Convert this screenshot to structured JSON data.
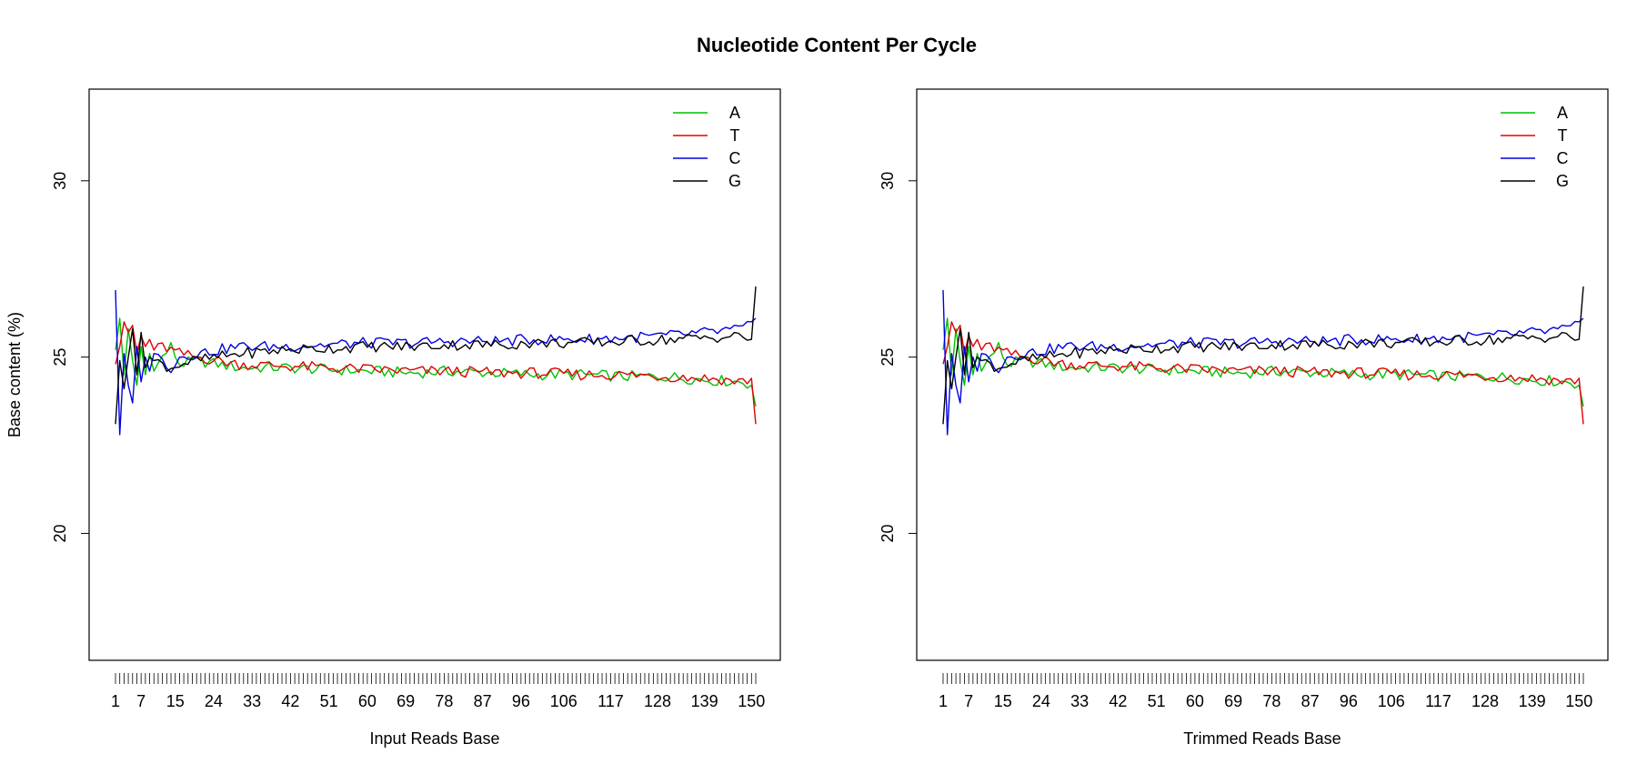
{
  "title": "Nucleotide Content Per Cycle",
  "colors": {
    "A": "#00c000",
    "T": "#e00000",
    "C": "#0000e0",
    "G": "#000000"
  },
  "chart_data": [
    {
      "type": "line",
      "xlabel": "Input Reads Base",
      "ylabel": "Base content (%)",
      "xlim": [
        1,
        151
      ],
      "ylim": [
        16.4,
        32.6
      ],
      "yticks": [
        20,
        25,
        30
      ],
      "xtick_labels": [
        "1",
        "7",
        "15",
        "24",
        "33",
        "42",
        "51",
        "60",
        "69",
        "78",
        "87",
        "96",
        "106",
        "117",
        "128",
        "139",
        "150"
      ],
      "legend": [
        "A",
        "T",
        "C",
        "G"
      ],
      "legend_position": "top-right",
      "series": [
        {
          "name": "A",
          "anchors": [
            [
              1,
              25.2
            ],
            [
              2,
              26.1
            ],
            [
              3,
              24.5
            ],
            [
              4,
              25.8
            ],
            [
              5,
              24.9
            ],
            [
              6,
              24.2
            ],
            [
              7,
              25.3
            ],
            [
              8,
              24.5
            ],
            [
              9,
              25.1
            ],
            [
              10,
              24.6
            ],
            [
              12,
              25.0
            ],
            [
              14,
              25.3
            ],
            [
              16,
              24.8
            ],
            [
              20,
              24.9
            ],
            [
              25,
              24.8
            ],
            [
              30,
              24.7
            ],
            [
              40,
              24.7
            ],
            [
              50,
              24.65
            ],
            [
              60,
              24.6
            ],
            [
              70,
              24.55
            ],
            [
              80,
              24.6
            ],
            [
              90,
              24.55
            ],
            [
              100,
              24.5
            ],
            [
              110,
              24.5
            ],
            [
              120,
              24.45
            ],
            [
              130,
              24.45
            ],
            [
              140,
              24.35
            ],
            [
              148,
              24.3
            ],
            [
              150,
              24.2
            ],
            [
              151,
              23.6
            ]
          ]
        },
        {
          "name": "T",
          "anchors": [
            [
              1,
              24.8
            ],
            [
              2,
              25.3
            ],
            [
              3,
              26.0
            ],
            [
              4,
              25.7
            ],
            [
              5,
              25.9
            ],
            [
              6,
              25.1
            ],
            [
              7,
              25.6
            ],
            [
              8,
              25.3
            ],
            [
              9,
              25.5
            ],
            [
              10,
              25.2
            ],
            [
              12,
              25.3
            ],
            [
              14,
              25.2
            ],
            [
              16,
              25.1
            ],
            [
              20,
              25.0
            ],
            [
              25,
              24.9
            ],
            [
              30,
              24.8
            ],
            [
              40,
              24.75
            ],
            [
              50,
              24.7
            ],
            [
              60,
              24.65
            ],
            [
              70,
              24.6
            ],
            [
              80,
              24.6
            ],
            [
              90,
              24.55
            ],
            [
              100,
              24.55
            ],
            [
              110,
              24.5
            ],
            [
              120,
              24.5
            ],
            [
              130,
              24.45
            ],
            [
              140,
              24.4
            ],
            [
              148,
              24.3
            ],
            [
              150,
              24.4
            ],
            [
              151,
              23.1
            ]
          ]
        },
        {
          "name": "C",
          "anchors": [
            [
              1,
              26.9
            ],
            [
              2,
              22.8
            ],
            [
              3,
              25.1
            ],
            [
              4,
              24.2
            ],
            [
              5,
              23.7
            ],
            [
              6,
              25.3
            ],
            [
              7,
              24.3
            ],
            [
              8,
              25.0
            ],
            [
              9,
              24.6
            ],
            [
              10,
              25.1
            ],
            [
              12,
              24.9
            ],
            [
              14,
              24.7
            ],
            [
              16,
              25.0
            ],
            [
              20,
              25.1
            ],
            [
              25,
              25.2
            ],
            [
              30,
              25.3
            ],
            [
              40,
              25.3
            ],
            [
              50,
              25.35
            ],
            [
              60,
              25.4
            ],
            [
              70,
              25.4
            ],
            [
              80,
              25.45
            ],
            [
              90,
              25.45
            ],
            [
              100,
              25.5
            ],
            [
              110,
              25.5
            ],
            [
              120,
              25.55
            ],
            [
              130,
              25.6
            ],
            [
              140,
              25.7
            ],
            [
              148,
              25.8
            ],
            [
              150,
              26.0
            ],
            [
              151,
              26.1
            ]
          ]
        },
        {
          "name": "G",
          "anchors": [
            [
              1,
              23.1
            ],
            [
              2,
              24.9
            ],
            [
              3,
              24.1
            ],
            [
              4,
              25.0
            ],
            [
              5,
              25.8
            ],
            [
              6,
              24.5
            ],
            [
              7,
              25.7
            ],
            [
              8,
              24.7
            ],
            [
              9,
              25.0
            ],
            [
              10,
              24.9
            ],
            [
              12,
              24.8
            ],
            [
              14,
              24.7
            ],
            [
              16,
              24.8
            ],
            [
              20,
              24.9
            ],
            [
              25,
              25.0
            ],
            [
              30,
              25.1
            ],
            [
              40,
              25.2
            ],
            [
              50,
              25.25
            ],
            [
              60,
              25.3
            ],
            [
              70,
              25.3
            ],
            [
              80,
              25.35
            ],
            [
              90,
              25.35
            ],
            [
              100,
              25.4
            ],
            [
              110,
              25.4
            ],
            [
              120,
              25.45
            ],
            [
              130,
              25.5
            ],
            [
              140,
              25.55
            ],
            [
              148,
              25.6
            ],
            [
              150,
              25.5
            ],
            [
              151,
              27.0
            ]
          ]
        }
      ]
    },
    {
      "type": "line",
      "xlabel": "Trimmed Reads Base",
      "ylabel": "",
      "xlim": [
        1,
        151
      ],
      "ylim": [
        16.4,
        32.6
      ],
      "yticks": [
        20,
        25,
        30
      ],
      "xtick_labels": [
        "1",
        "7",
        "15",
        "24",
        "33",
        "42",
        "51",
        "60",
        "69",
        "78",
        "87",
        "96",
        "106",
        "117",
        "128",
        "139",
        "150"
      ],
      "legend": [
        "A",
        "T",
        "C",
        "G"
      ],
      "legend_position": "top-right",
      "series": [
        {
          "name": "A",
          "anchors": [
            [
              1,
              25.2
            ],
            [
              2,
              26.1
            ],
            [
              3,
              24.5
            ],
            [
              4,
              25.8
            ],
            [
              5,
              24.9
            ],
            [
              6,
              24.2
            ],
            [
              7,
              25.3
            ],
            [
              8,
              24.5
            ],
            [
              9,
              25.1
            ],
            [
              10,
              24.6
            ],
            [
              12,
              25.0
            ],
            [
              14,
              25.3
            ],
            [
              16,
              24.8
            ],
            [
              20,
              24.9
            ],
            [
              25,
              24.8
            ],
            [
              30,
              24.7
            ],
            [
              40,
              24.7
            ],
            [
              50,
              24.65
            ],
            [
              60,
              24.6
            ],
            [
              70,
              24.55
            ],
            [
              80,
              24.6
            ],
            [
              90,
              24.55
            ],
            [
              100,
              24.5
            ],
            [
              110,
              24.5
            ],
            [
              120,
              24.45
            ],
            [
              130,
              24.45
            ],
            [
              140,
              24.35
            ],
            [
              148,
              24.3
            ],
            [
              150,
              24.2
            ],
            [
              151,
              23.6
            ]
          ]
        },
        {
          "name": "T",
          "anchors": [
            [
              1,
              24.8
            ],
            [
              2,
              25.3
            ],
            [
              3,
              26.0
            ],
            [
              4,
              25.7
            ],
            [
              5,
              25.9
            ],
            [
              6,
              25.1
            ],
            [
              7,
              25.6
            ],
            [
              8,
              25.3
            ],
            [
              9,
              25.5
            ],
            [
              10,
              25.2
            ],
            [
              12,
              25.3
            ],
            [
              14,
              25.2
            ],
            [
              16,
              25.1
            ],
            [
              20,
              25.0
            ],
            [
              25,
              24.9
            ],
            [
              30,
              24.8
            ],
            [
              40,
              24.75
            ],
            [
              50,
              24.7
            ],
            [
              60,
              24.65
            ],
            [
              70,
              24.6
            ],
            [
              80,
              24.6
            ],
            [
              90,
              24.55
            ],
            [
              100,
              24.55
            ],
            [
              110,
              24.5
            ],
            [
              120,
              24.5
            ],
            [
              130,
              24.45
            ],
            [
              140,
              24.4
            ],
            [
              148,
              24.3
            ],
            [
              150,
              24.4
            ],
            [
              151,
              23.1
            ]
          ]
        },
        {
          "name": "C",
          "anchors": [
            [
              1,
              26.9
            ],
            [
              2,
              22.8
            ],
            [
              3,
              25.1
            ],
            [
              4,
              24.2
            ],
            [
              5,
              23.7
            ],
            [
              6,
              25.3
            ],
            [
              7,
              24.3
            ],
            [
              8,
              25.0
            ],
            [
              9,
              24.6
            ],
            [
              10,
              25.1
            ],
            [
              12,
              24.9
            ],
            [
              14,
              24.7
            ],
            [
              16,
              25.0
            ],
            [
              20,
              25.1
            ],
            [
              25,
              25.2
            ],
            [
              30,
              25.3
            ],
            [
              40,
              25.3
            ],
            [
              50,
              25.35
            ],
            [
              60,
              25.4
            ],
            [
              70,
              25.4
            ],
            [
              80,
              25.45
            ],
            [
              90,
              25.45
            ],
            [
              100,
              25.5
            ],
            [
              110,
              25.5
            ],
            [
              120,
              25.55
            ],
            [
              130,
              25.6
            ],
            [
              140,
              25.7
            ],
            [
              148,
              25.8
            ],
            [
              150,
              26.0
            ],
            [
              151,
              26.1
            ]
          ]
        },
        {
          "name": "G",
          "anchors": [
            [
              1,
              23.1
            ],
            [
              2,
              24.9
            ],
            [
              3,
              24.1
            ],
            [
              4,
              25.0
            ],
            [
              5,
              25.8
            ],
            [
              6,
              24.5
            ],
            [
              7,
              25.7
            ],
            [
              8,
              24.7
            ],
            [
              9,
              25.0
            ],
            [
              10,
              24.9
            ],
            [
              12,
              24.8
            ],
            [
              14,
              24.7
            ],
            [
              16,
              24.8
            ],
            [
              20,
              24.9
            ],
            [
              25,
              25.0
            ],
            [
              30,
              25.1
            ],
            [
              40,
              25.2
            ],
            [
              50,
              25.25
            ],
            [
              60,
              25.3
            ],
            [
              70,
              25.3
            ],
            [
              80,
              25.35
            ],
            [
              90,
              25.35
            ],
            [
              100,
              25.4
            ],
            [
              110,
              25.4
            ],
            [
              120,
              25.45
            ],
            [
              130,
              25.5
            ],
            [
              140,
              25.55
            ],
            [
              148,
              25.6
            ],
            [
              150,
              25.5
            ],
            [
              151,
              27.0
            ]
          ]
        }
      ]
    }
  ]
}
